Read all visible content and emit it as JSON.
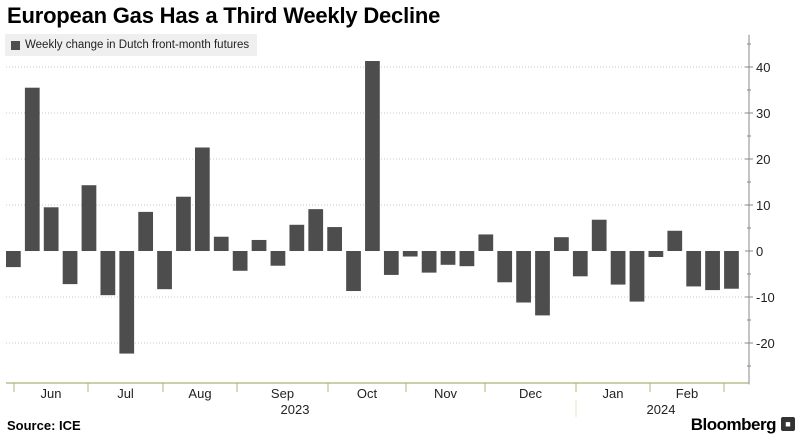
{
  "title": "European Gas Has a Third Weekly Decline",
  "source": "Source: ICE",
  "brand": "Bloomberg",
  "brand_icon": "terminal-icon",
  "colors": {
    "bar": "#4d4d4d",
    "grid": "#c8c8c8",
    "axis": "#a8b878",
    "legend_bg": "#efefef"
  },
  "chart_data": {
    "type": "bar",
    "title": "European Gas Has a Third Weekly Decline",
    "legend": [
      "Weekly change in Dutch front-month futures"
    ],
    "series": [
      {
        "name": "Weekly change in Dutch front-month futures",
        "values": [
          -3.5,
          35.5,
          9.5,
          -7.2,
          14.3,
          -9.6,
          -22.3,
          8.5,
          -8.3,
          11.8,
          22.5,
          3.1,
          -4.3,
          2.4,
          -3.2,
          5.7,
          9.1,
          5.2,
          -8.7,
          41.3,
          -5.2,
          -1.2,
          -4.7,
          -3.0,
          -3.3,
          3.6,
          -6.8,
          -11.2,
          -14.0,
          3.0,
          -5.5,
          6.8,
          -7.3,
          -11.0,
          -1.3,
          4.4,
          -7.7,
          -8.5,
          -8.2
        ]
      }
    ],
    "x_month_labels": [
      "Jun",
      "Jul",
      "Aug",
      "Sep",
      "Oct",
      "Nov",
      "Dec",
      "Jan",
      "Feb"
    ],
    "x_year_labels": [
      "2023",
      "2024"
    ],
    "ylim": [
      -29,
      47
    ],
    "yticks": [
      -20,
      -10,
      0,
      10,
      20,
      30,
      40
    ],
    "ytick_labels": [
      "-20",
      "-10",
      "0",
      "10",
      "20",
      "30",
      "40"
    ],
    "grid": true,
    "xlabel": "",
    "ylabel": ""
  }
}
